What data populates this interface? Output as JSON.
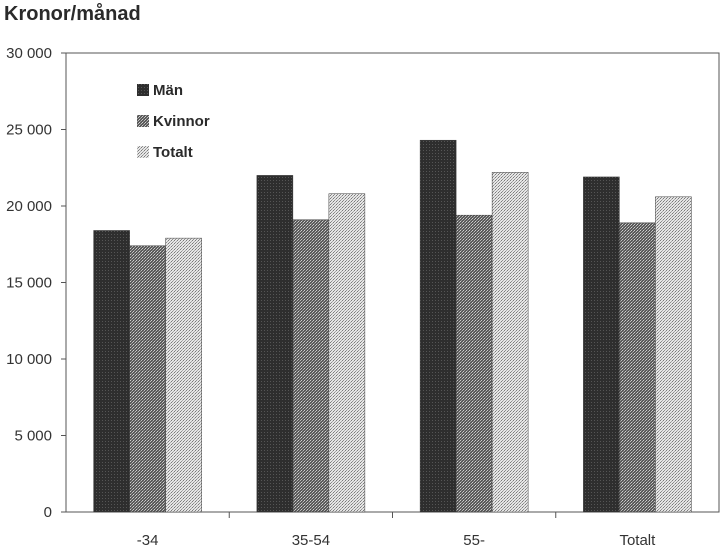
{
  "chart_data": {
    "type": "bar",
    "title": "Kronor/månad",
    "xlabel": "",
    "ylabel": "",
    "categories": [
      "-34",
      "35-54",
      "55-",
      "Totalt"
    ],
    "series": [
      {
        "name": "Män",
        "values": [
          18400,
          22000,
          24300,
          21900
        ]
      },
      {
        "name": "Kvinnor",
        "values": [
          17400,
          19100,
          19400,
          18900
        ]
      },
      {
        "name": "Totalt",
        "values": [
          17900,
          20800,
          22200,
          20600
        ]
      }
    ],
    "ylim": [
      0,
      30000
    ],
    "yticks": [
      0,
      5000,
      10000,
      15000,
      20000,
      25000,
      30000
    ],
    "ytick_labels": [
      "0",
      "5 000",
      "10 000",
      "15 000",
      "20 000",
      "25 000",
      "30 000"
    ],
    "grid": false,
    "legend_position": "top-left inside plot"
  }
}
